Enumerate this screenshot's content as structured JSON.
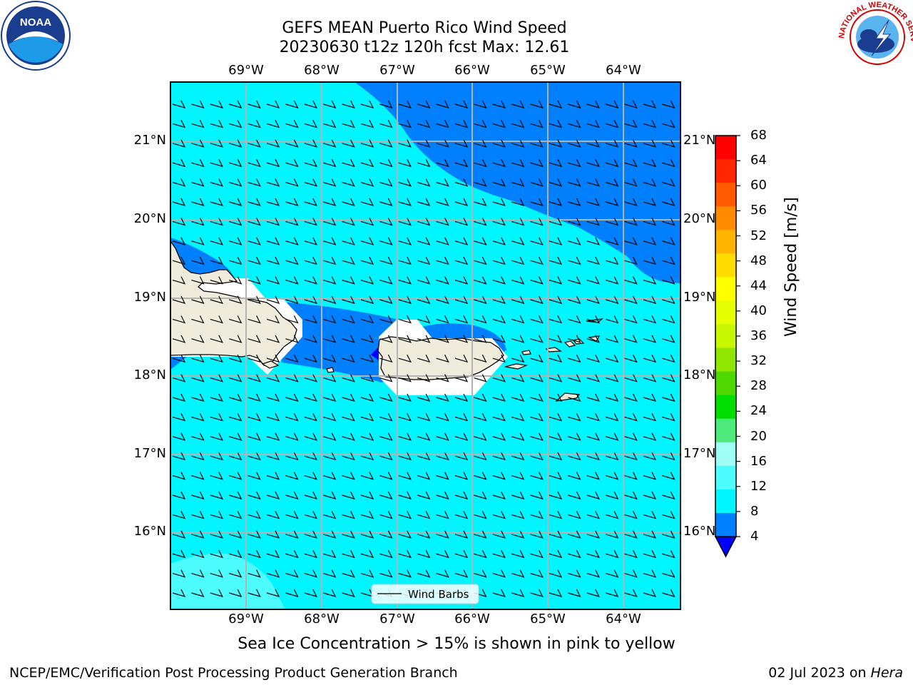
{
  "header": {
    "title_line1": "GEFS MEAN Puerto Rico Wind Speed",
    "title_line2": "20230630 t12z 120h fcst   Max: 12.61"
  },
  "axes": {
    "lon_labels": [
      "69°W",
      "68°W",
      "67°W",
      "66°W",
      "65°W",
      "64°W"
    ],
    "lat_labels": [
      "21°N",
      "20°N",
      "19°N",
      "18°N",
      "17°N",
      "16°N"
    ]
  },
  "legend": {
    "wind_barbs_label": "Wind Barbs"
  },
  "colorbar": {
    "label": "Wind Speed [m/s]",
    "ticks": [
      "68",
      "64",
      "60",
      "56",
      "52",
      "48",
      "44",
      "40",
      "36",
      "32",
      "28",
      "24",
      "20",
      "16",
      "12",
      "8",
      "4"
    ],
    "colors": [
      "#ff0000",
      "#ff2600",
      "#ff5a00",
      "#ff8c00",
      "#ffb400",
      "#ffdc00",
      "#ffff00",
      "#e6ff00",
      "#c8f500",
      "#90e600",
      "#4ed800",
      "#00dd00",
      "#4de97a",
      "#a0fff4",
      "#4dfcff",
      "#00f6ff",
      "#0080ff"
    ],
    "under_color": "#0000ff"
  },
  "map": {
    "land_color": "#efecdc",
    "light_wind_color": "#0080ff",
    "moderate_wind_color": "#00f6ff",
    "stronger_wind_color": "#4dfcff"
  },
  "caption": "Sea Ice Concentration > 15% is shown in pink to yellow",
  "footer": {
    "left": "NCEP/EMC/Verification Post Processing Product Generation Branch",
    "date": "02 Jul 2023 on ",
    "host": "Hera"
  },
  "logos": {
    "noaa_text": "NOAA",
    "nws_text": "NATIONAL WEATHER SERVICE"
  }
}
